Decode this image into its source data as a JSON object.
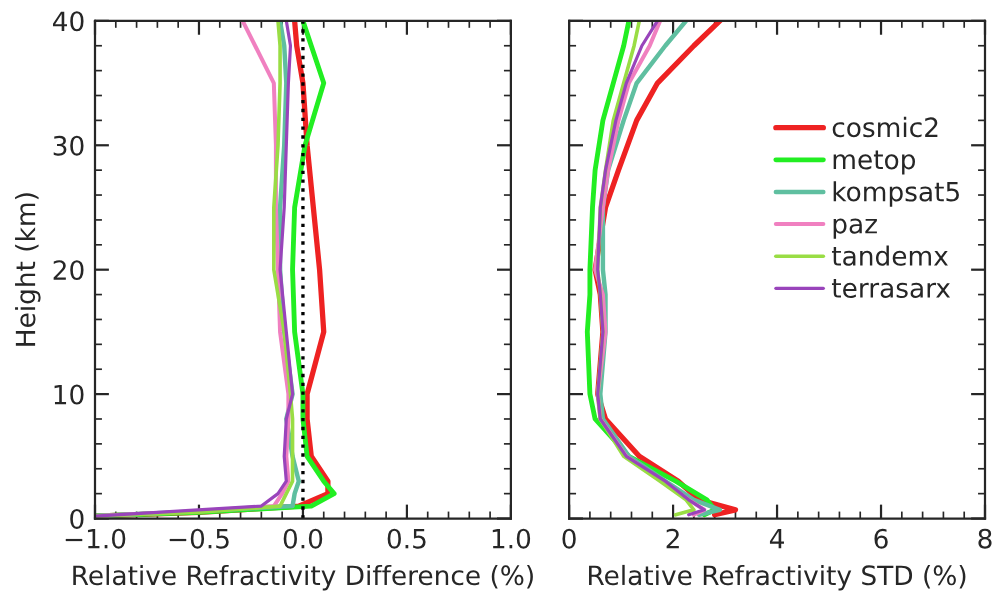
{
  "chart_data": [
    {
      "type": "line",
      "xlabel": "Relative Refractivity Difference (%)",
      "ylabel": "Height (km)",
      "xlim": [
        -1,
        1
      ],
      "xticks": [
        {
          "value": -1,
          "label": "−1.0"
        },
        {
          "value": -0.5,
          "label": "−0.5"
        },
        {
          "value": 0,
          "label": "0.0"
        },
        {
          "value": 0.5,
          "label": "0.5"
        },
        {
          "value": 1,
          "label": "1.0"
        }
      ],
      "ylim": [
        0,
        40
      ],
      "yticks": [
        0,
        10,
        20,
        30,
        40
      ],
      "grid": false,
      "legend": false,
      "ref_lines": [
        {
          "axis": "x",
          "value": 0,
          "label": null,
          "color": "#000000",
          "line_style": "dotted"
        }
      ],
      "series": [
        {
          "color": "#ee2222",
          "x": [
            -0.04,
            -0.03,
            0.0,
            0.02,
            0.05,
            0.08,
            0.1,
            0.02,
            0.02,
            0.04,
            0.12,
            0.12,
            -0.02,
            -0.5,
            -1.0
          ],
          "values": [
            40,
            38,
            35,
            30,
            25,
            20,
            15,
            10,
            8,
            5,
            3,
            2,
            1,
            0.5,
            0.2
          ]
        },
        {
          "color": "#22ee22",
          "x": [
            0.0,
            0.04,
            0.1,
            0.01,
            -0.04,
            -0.05,
            -0.04,
            0.0,
            0.0,
            0.02,
            0.1,
            0.15,
            0.04,
            -0.5,
            -1.0
          ],
          "values": [
            40,
            38,
            35,
            30,
            25,
            20,
            15,
            10,
            8,
            5,
            3,
            2,
            1,
            0.5,
            0.2
          ]
        },
        {
          "color": "#5fbfa0",
          "x": [
            -0.11,
            -0.09,
            -0.08,
            -0.09,
            -0.11,
            -0.11,
            -0.09,
            -0.05,
            -0.08,
            -0.05,
            -0.02,
            -0.04,
            -0.05,
            -0.6,
            -1.0
          ],
          "values": [
            40,
            38,
            35,
            30,
            25,
            20,
            15,
            10,
            8,
            5,
            3,
            2,
            1,
            0.5,
            0.2
          ]
        },
        {
          "color": "#f080c0",
          "x": [
            -0.29,
            -0.23,
            -0.14,
            -0.13,
            -0.13,
            -0.12,
            -0.11,
            -0.07,
            -0.07,
            -0.08,
            -0.07,
            -0.1,
            -0.14,
            -0.6,
            -1.0
          ],
          "values": [
            40,
            38,
            35,
            30,
            25,
            20,
            15,
            10,
            8,
            5,
            3,
            2,
            1,
            0.5,
            0.2
          ]
        },
        {
          "color": "#99dd44",
          "x": [
            -0.12,
            -0.11,
            -0.11,
            -0.12,
            -0.14,
            -0.14,
            -0.09,
            -0.06,
            -0.05,
            -0.05,
            -0.05,
            -0.08,
            -0.11,
            -0.5,
            -1.0
          ],
          "values": [
            40,
            38,
            35,
            30,
            25,
            20,
            15,
            10,
            8,
            5,
            3,
            2,
            1,
            0.5,
            0.2
          ]
        },
        {
          "color": "#9944bb",
          "x": [
            -0.08,
            -0.06,
            -0.07,
            -0.08,
            -0.09,
            -0.11,
            -0.08,
            -0.05,
            -0.08,
            -0.09,
            -0.08,
            -0.12,
            -0.2,
            -0.7,
            -1.0
          ],
          "values": [
            40,
            38,
            35,
            30,
            25,
            20,
            15,
            10,
            8,
            5,
            3,
            2,
            1,
            0.5,
            0.2
          ]
        }
      ]
    },
    {
      "type": "line",
      "xlabel": "Relative Refractivity STD (%)",
      "xlim": [
        0,
        8
      ],
      "xticks": [
        0,
        2,
        4,
        6,
        8
      ],
      "ylim": [
        0,
        40
      ],
      "yticks": [
        0,
        10,
        20,
        30,
        40
      ],
      "tick_labels": "x",
      "grid": false,
      "legend": "right",
      "series": [
        {
          "name": "cosmic2",
          "color": "#ee2222",
          "x": [
            2.9,
            2.4,
            1.7,
            1.3,
            0.95,
            0.7,
            0.5,
            0.6,
            0.65,
            0.55,
            0.7,
            1.35,
            2.1,
            2.5,
            3.2,
            2.8
          ],
          "values": [
            40,
            38,
            35,
            32,
            28,
            25,
            20,
            18,
            15,
            10,
            8,
            5,
            3,
            1.5,
            0.7,
            0.3
          ]
        },
        {
          "name": "metop",
          "color": "#22ee22",
          "x": [
            1.15,
            1.05,
            0.85,
            0.65,
            0.5,
            0.45,
            0.4,
            0.4,
            0.35,
            0.4,
            0.5,
            1.15,
            2.05,
            2.65,
            2.8,
            2.6
          ],
          "values": [
            40,
            38,
            35,
            32,
            28,
            25,
            20,
            18,
            15,
            10,
            8,
            5,
            3,
            1.5,
            0.7,
            0.3
          ]
        },
        {
          "name": "kompsat5",
          "color": "#5fbfa0",
          "x": [
            2.25,
            1.85,
            1.3,
            1.05,
            0.75,
            0.65,
            0.65,
            0.7,
            0.7,
            0.6,
            0.65,
            1.15,
            1.85,
            2.4,
            2.9,
            2.5
          ],
          "values": [
            40,
            38,
            35,
            32,
            28,
            25,
            20,
            18,
            15,
            10,
            8,
            5,
            3,
            1.5,
            0.7,
            0.3
          ]
        },
        {
          "name": "paz",
          "color": "#f080c0",
          "x": [
            1.75,
            1.55,
            1.15,
            0.95,
            0.75,
            0.65,
            0.5,
            0.65,
            0.7,
            0.55,
            0.6,
            1.1,
            1.8,
            2.3,
            2.6,
            2.4
          ],
          "values": [
            40,
            38,
            35,
            32,
            28,
            25,
            20,
            18,
            15,
            10,
            8,
            5,
            3,
            1.5,
            0.7,
            0.3
          ]
        },
        {
          "name": "tandemx",
          "color": "#99dd44",
          "x": [
            1.35,
            1.25,
            1.05,
            0.85,
            0.7,
            0.6,
            0.55,
            0.6,
            0.65,
            0.55,
            0.6,
            1.05,
            1.75,
            2.25,
            2.4,
            2.05
          ],
          "values": [
            40,
            38,
            35,
            32,
            28,
            25,
            20,
            18,
            15,
            10,
            8,
            5,
            3,
            1.5,
            0.7,
            0.3
          ]
        },
        {
          "name": "terrasarx",
          "color": "#9944bb",
          "x": [
            1.7,
            1.4,
            1.1,
            0.9,
            0.7,
            0.6,
            0.55,
            0.6,
            0.65,
            0.55,
            0.6,
            1.1,
            1.85,
            2.3,
            2.6,
            2.3
          ],
          "values": [
            40,
            38,
            35,
            32,
            28,
            25,
            20,
            18,
            15,
            10,
            8,
            5,
            3,
            1.5,
            0.7,
            0.3
          ]
        }
      ]
    }
  ]
}
